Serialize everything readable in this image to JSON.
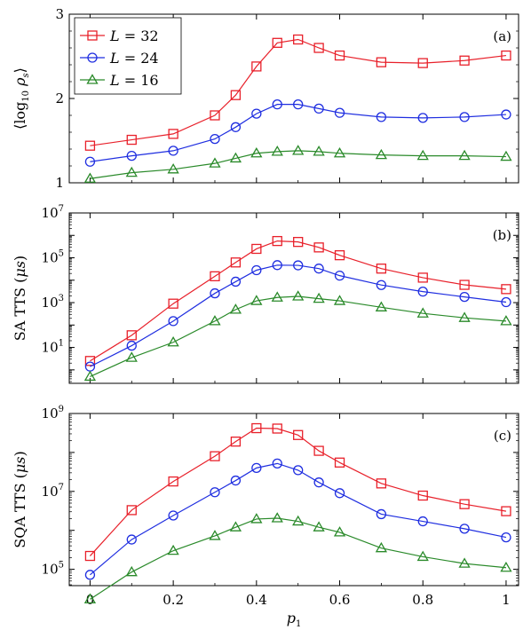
{
  "x_label_main": "p",
  "x_label_sub": "1",
  "legend": [
    {
      "main": "L = 32",
      "color": "#e8202a",
      "marker": "square"
    },
    {
      "main": "L = 24",
      "color": "#1f2ee0",
      "marker": "circle"
    },
    {
      "main": "L = 16",
      "color": "#2a8a2a",
      "marker": "triangle"
    }
  ],
  "chart_data": [
    {
      "type": "line",
      "panel_label": "(a)",
      "ylabel": "⟨log10 ρs⟩",
      "ylim": [
        1,
        3
      ],
      "xlim": [
        -0.05,
        1.03
      ],
      "y_scale": "linear",
      "y_ticks": [
        1,
        2,
        3
      ],
      "y_tick_labels": [
        "1",
        "2",
        "3"
      ],
      "x": [
        0,
        0.1,
        0.2,
        0.3,
        0.35,
        0.4,
        0.45,
        0.5,
        0.55,
        0.6,
        0.7,
        0.8,
        0.9,
        1.0
      ],
      "series": [
        {
          "name": "L = 32",
          "values": [
            1.44,
            1.51,
            1.58,
            1.8,
            2.04,
            2.38,
            2.66,
            2.7,
            2.6,
            2.51,
            2.43,
            2.42,
            2.45,
            2.51
          ]
        },
        {
          "name": "L = 24",
          "values": [
            1.25,
            1.32,
            1.38,
            1.52,
            1.66,
            1.82,
            1.93,
            1.93,
            1.88,
            1.83,
            1.78,
            1.77,
            1.78,
            1.81
          ]
        },
        {
          "name": "L = 16",
          "values": [
            1.05,
            1.12,
            1.16,
            1.23,
            1.29,
            1.35,
            1.37,
            1.38,
            1.37,
            1.35,
            1.33,
            1.32,
            1.32,
            1.31
          ]
        }
      ]
    },
    {
      "type": "line",
      "panel_label": "(b)",
      "ylabel": "SA TTS (μs)",
      "ylim": [
        -0.6,
        7
      ],
      "xlim": [
        -0.05,
        1.03
      ],
      "y_scale": "log10",
      "y_ticks": [
        1,
        3,
        5,
        7
      ],
      "y_tick_labels": [
        "10^1",
        "10^3",
        "10^5",
        "10^7"
      ],
      "x": [
        0,
        0.1,
        0.2,
        0.3,
        0.35,
        0.4,
        0.45,
        0.5,
        0.55,
        0.6,
        0.7,
        0.8,
        0.9,
        1.0
      ],
      "series": [
        {
          "name": "L = 32",
          "values": [
            2.5,
            35,
            900,
            15000,
            62000,
            250000,
            560000,
            510000,
            290000,
            130000,
            33000,
            13000,
            6200,
            4000
          ]
        },
        {
          "name": "L = 24",
          "values": [
            1.4,
            12,
            150,
            2600,
            8600,
            28000,
            47000,
            46000,
            33000,
            16000,
            6100,
            3100,
            1800,
            1050
          ]
        },
        {
          "name": "L = 16",
          "values": [
            0.5,
            3.5,
            17,
            150,
            490,
            1200,
            1700,
            1900,
            1500,
            1200,
            620,
            330,
            210,
            150
          ]
        }
      ]
    },
    {
      "type": "line",
      "panel_label": "(c)",
      "ylabel": "SQA TTS (μs)",
      "ylim": [
        4.58,
        9
      ],
      "xlim": [
        -0.05,
        1.03
      ],
      "y_scale": "log10",
      "y_ticks": [
        5,
        7,
        9
      ],
      "y_tick_labels": [
        "10^5",
        "10^7",
        "10^9"
      ],
      "x": [
        0,
        0.1,
        0.2,
        0.3,
        0.35,
        0.4,
        0.45,
        0.5,
        0.55,
        0.6,
        0.7,
        0.8,
        0.9,
        1.0
      ],
      "series": [
        {
          "name": "L = 32",
          "values": [
            220000,
            3300000,
            18000000,
            80000000,
            190000000,
            420000000,
            410000000,
            280000000,
            110000000,
            55000000,
            16000000,
            7800000,
            4700000,
            3100000
          ]
        },
        {
          "name": "L = 24",
          "values": [
            72000,
            580000,
            2400000,
            9500000,
            19000000,
            40000000,
            52000000,
            35000000,
            17000000,
            9000000,
            2600000,
            1700000,
            1100000,
            660000
          ]
        },
        {
          "name": "L = 16",
          "values": [
            17000,
            85000,
            300000,
            720000,
            1200000,
            1950000,
            2050000,
            1700000,
            1200000,
            890000,
            350000,
            210000,
            140000,
            110000
          ]
        }
      ]
    }
  ]
}
